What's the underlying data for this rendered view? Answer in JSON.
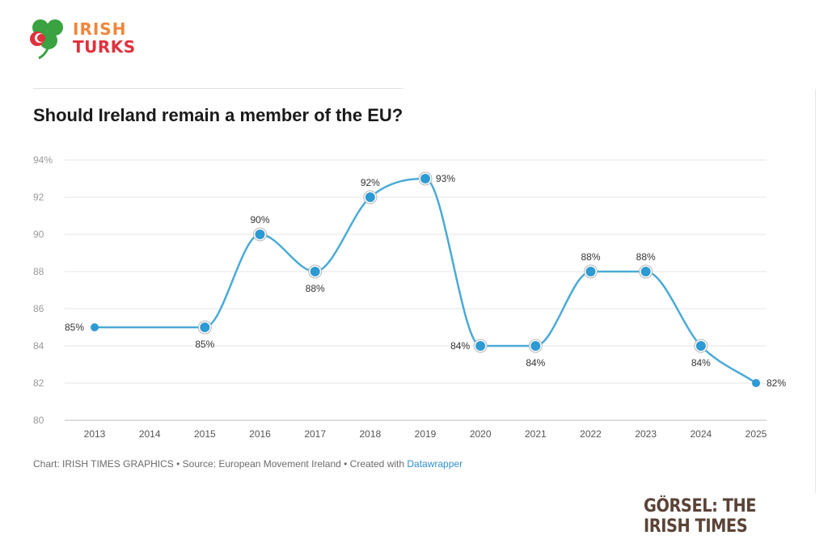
{
  "logo": {
    "line1": "IRISH",
    "line2": "TURKS"
  },
  "chart_data": {
    "type": "line",
    "title": "Should Ireland remain a member of the EU?",
    "x": [
      "2013",
      "2014",
      "2015",
      "2016",
      "2017",
      "2018",
      "2019",
      "2020",
      "2021",
      "2022",
      "2023",
      "2024",
      "2025"
    ],
    "series": [
      {
        "values": [
          85,
          null,
          85,
          90,
          88,
          92,
          93,
          84,
          84,
          88,
          88,
          84,
          82
        ]
      }
    ],
    "data_labels": [
      "85%",
      null,
      "85%",
      "90%",
      "88%",
      "92%",
      "93%",
      "84%",
      "84%",
      "88%",
      "88%",
      "84%",
      "82%"
    ],
    "y_ticks": [
      "94%",
      "92",
      "90",
      "88",
      "86",
      "84",
      "82",
      "80"
    ],
    "ylim": [
      80,
      94
    ],
    "grid": true,
    "line_color": "#4aaad6",
    "point_color": "#2e9ad3"
  },
  "footer": {
    "text": "Chart: IRISH TIMES GRAPHICS • Source: European Movement Ireland • Created with ",
    "link": "Datawrapper"
  },
  "credit": "GÖRSEL: THE IRISH TIMES"
}
